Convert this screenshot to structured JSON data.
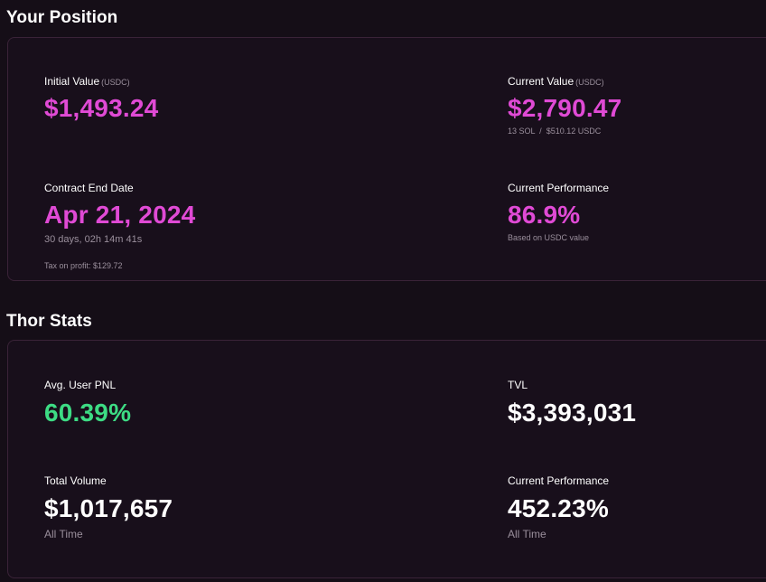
{
  "position": {
    "title": "Your Position",
    "initial_value": {
      "label": "Initial Value",
      "unit": "(USDC)",
      "value": "$1,493.24"
    },
    "current_value": {
      "label": "Current Value",
      "unit": "(USDC)",
      "value": "$2,790.47",
      "sub": "13 SOL  /  $510.12 USDC"
    },
    "contract_end": {
      "label": "Contract End Date",
      "value": "Apr 21, 2024",
      "sub": "30 days, 02h 14m 41s"
    },
    "current_performance": {
      "label": "Current Performance",
      "value": "86.9%",
      "sub": "Based on USDC value"
    },
    "tax_note": "Tax on profit: $129.72"
  },
  "thor_stats": {
    "title": "Thor Stats",
    "avg_user_pnl": {
      "label": "Avg. User PNL",
      "value": "60.39%"
    },
    "tvl": {
      "label": "TVL",
      "value": "$3,393,031"
    },
    "total_volume": {
      "label": "Total Volume",
      "value": "$1,017,657",
      "sub": "All Time"
    },
    "current_performance": {
      "label": "Current Performance",
      "value": "452.23%",
      "sub": "All Time"
    }
  },
  "colors": {
    "background": "#150e17",
    "accent_pink": "#e04ad5",
    "accent_green": "#3ddc84",
    "card_border": "#3a2338",
    "muted_text": "#9a8f9c"
  }
}
